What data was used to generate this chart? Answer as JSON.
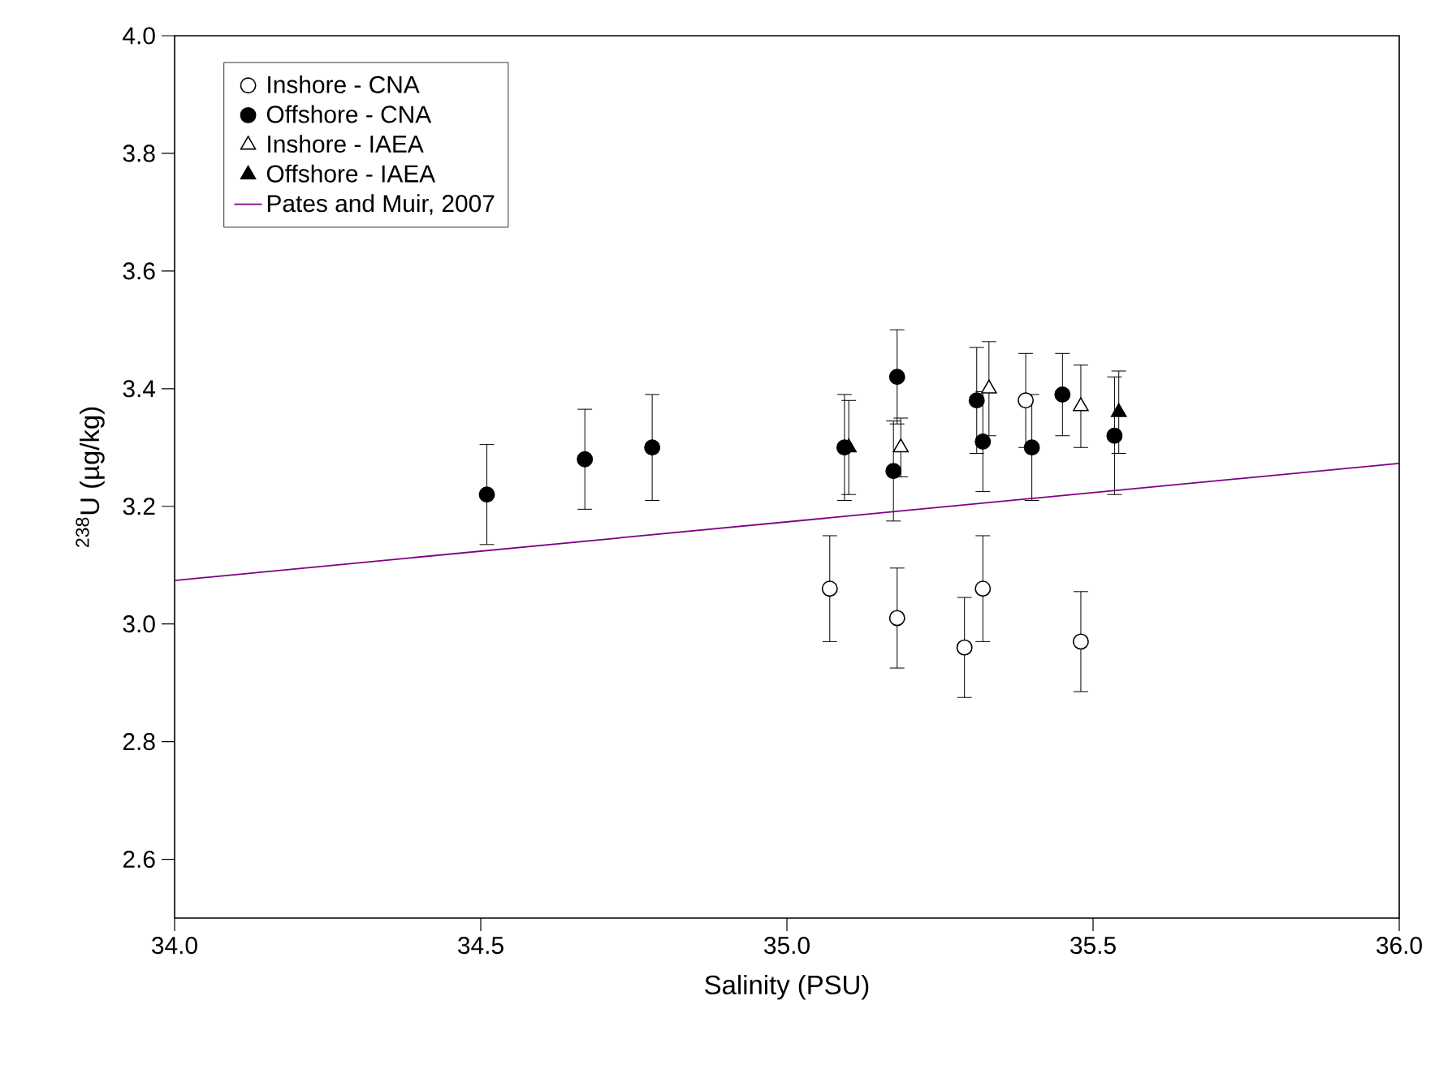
{
  "chart_data": {
    "type": "scatter",
    "xlabel": "Salinity (PSU)",
    "ylabel": "$^{238}$U (µg/kg)",
    "xlim": [
      34.0,
      36.0
    ],
    "ylim": [
      2.5,
      4.0
    ],
    "xticks": [
      {
        "value": 34.0,
        "label": "34.0"
      },
      {
        "value": 34.5,
        "label": "34.5"
      },
      {
        "value": 35.0,
        "label": "35.0"
      },
      {
        "value": 35.5,
        "label": "35.5"
      },
      {
        "value": 36.0,
        "label": "36.0"
      }
    ],
    "yticks": [
      {
        "value": 2.6,
        "label": "2.6"
      },
      {
        "value": 2.8,
        "label": "2.8"
      },
      {
        "value": 3.0,
        "label": "3.0"
      },
      {
        "value": 3.2,
        "label": "3.2"
      },
      {
        "value": 3.4,
        "label": "3.4"
      },
      {
        "value": 3.6,
        "label": "3.6"
      },
      {
        "value": 3.8,
        "label": "3.8"
      },
      {
        "value": 4.0,
        "label": "4.0"
      }
    ],
    "grid": false,
    "legend": "top left",
    "series": [
      {
        "name": "Inshore - CNA",
        "marker": "circle",
        "color": "#ffffff",
        "x": [
          35.07,
          35.18,
          35.29,
          35.32,
          35.48,
          35.39
        ],
        "values": [
          3.06,
          3.01,
          2.96,
          3.06,
          2.97,
          3.38
        ],
        "errors": [
          0.09,
          0.085,
          0.085,
          0.09,
          0.085,
          0.08
        ]
      },
      {
        "name": "Offshore - CNA",
        "marker": "circle",
        "color": "#000000",
        "x": [
          34.51,
          34.67,
          34.78,
          35.094,
          35.18,
          35.174,
          35.31,
          35.32,
          35.4,
          35.45,
          35.535
        ],
        "values": [
          3.22,
          3.28,
          3.3,
          3.3,
          3.42,
          3.26,
          3.38,
          3.31,
          3.3,
          3.39,
          3.32
        ],
        "errors": [
          0.085,
          0.085,
          0.09,
          0.09,
          0.08,
          0.085,
          0.09,
          0.085,
          0.09,
          0.07,
          0.1
        ]
      },
      {
        "name": "Inshore - IAEA",
        "marker": "triangle",
        "color": "#ffffff",
        "x": [
          35.186,
          35.33,
          35.48
        ],
        "values": [
          3.3,
          3.4,
          3.37
        ],
        "errors": [
          0.05,
          0.08,
          0.07
        ]
      },
      {
        "name": "Offshore - IAEA",
        "marker": "triangle",
        "color": "#000000",
        "x": [
          35.101,
          35.542
        ],
        "values": [
          3.3,
          3.36
        ],
        "errors": [
          0.08,
          0.07
        ]
      },
      {
        "name": "Pates and Muir, 2007",
        "type": "line",
        "marker": "none",
        "line_style": "solid",
        "color": "#800080",
        "x": [
          34.0,
          36.0
        ],
        "values": [
          3.074,
          3.273
        ]
      }
    ]
  }
}
